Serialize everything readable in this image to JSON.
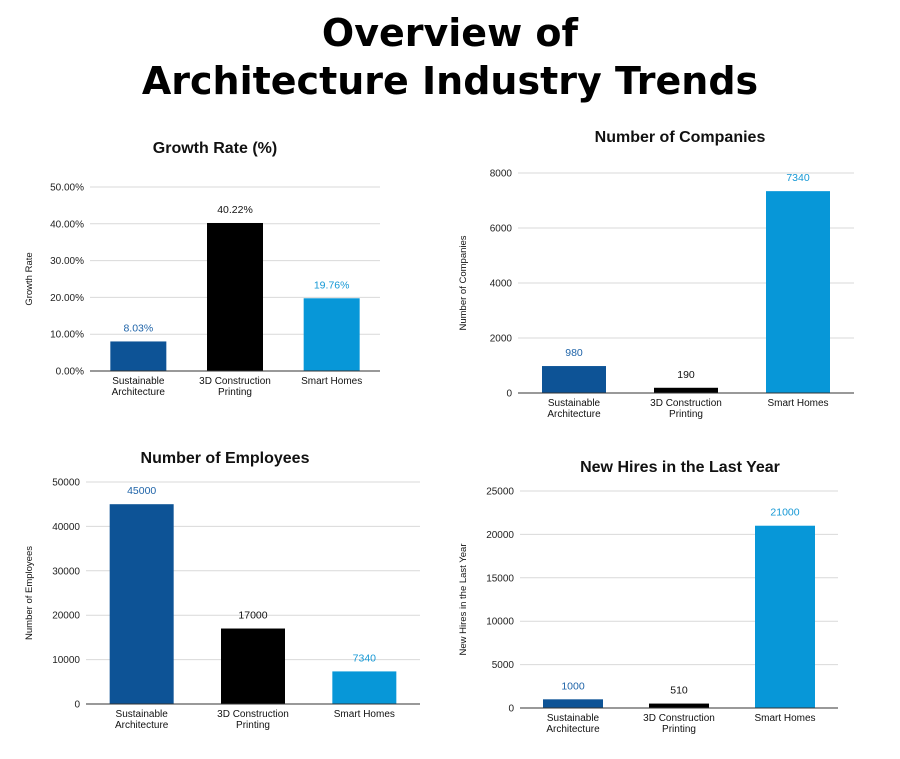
{
  "title_line1": "Overview of",
  "title_line2": "Architecture Industry Trends",
  "chart_data": [
    {
      "id": "growth",
      "type": "bar",
      "title": "Growth Rate (%)",
      "ylabel": "Growth Rate",
      "xlabel": "",
      "categories": [
        [
          "Sustainable",
          "Architecture"
        ],
        [
          "3D Construction",
          "Printing"
        ],
        [
          "Smart Homes"
        ]
      ],
      "values": [
        8.03,
        40.22,
        19.76
      ],
      "value_labels": [
        "8.03%",
        "40.22%",
        "19.76%"
      ],
      "ylim": [
        0,
        50
      ],
      "yticks": [
        0,
        10,
        20,
        30,
        40,
        50
      ],
      "ytick_labels": [
        "0.00%",
        "10.00%",
        "20.00%",
        "30.00%",
        "40.00%",
        "50.00%"
      ],
      "grid": true
    },
    {
      "id": "companies",
      "type": "bar",
      "title": "Number of Companies",
      "ylabel": "Number of Companies",
      "xlabel": "",
      "categories": [
        [
          "Sustainable",
          "Architecture"
        ],
        [
          "3D Construction",
          "Printing"
        ],
        [
          "Smart Homes"
        ]
      ],
      "values": [
        980,
        190,
        7340
      ],
      "value_labels": [
        "980",
        "190",
        "7340"
      ],
      "ylim": [
        0,
        8000
      ],
      "yticks": [
        0,
        2000,
        4000,
        6000,
        8000
      ],
      "ytick_labels": [
        "0",
        "2000",
        "4000",
        "6000",
        "8000"
      ],
      "grid": true
    },
    {
      "id": "employees",
      "type": "bar",
      "title": "Number of Employees",
      "ylabel": "Number of Employees",
      "xlabel": "",
      "categories": [
        [
          "Sustainable",
          "Architecture"
        ],
        [
          "3D Construction",
          "Printing"
        ],
        [
          "Smart Homes"
        ]
      ],
      "values": [
        45000,
        17000,
        7340
      ],
      "value_labels": [
        "45000",
        "17000",
        "7340"
      ],
      "ylim": [
        0,
        50000
      ],
      "yticks": [
        0,
        10000,
        20000,
        30000,
        40000,
        50000
      ],
      "ytick_labels": [
        "0",
        "10000",
        "20000",
        "30000",
        "40000",
        "50000"
      ],
      "grid": true
    },
    {
      "id": "hires",
      "type": "bar",
      "title": "New Hires in the Last Year",
      "ylabel": "New Hires in the Last Year",
      "xlabel": "",
      "categories": [
        [
          "Sustainable",
          "Architecture"
        ],
        [
          "3D Construction",
          "Printing"
        ],
        [
          "Smart Homes"
        ]
      ],
      "values": [
        1000,
        510,
        21000
      ],
      "value_labels": [
        "1000",
        "510",
        "21000"
      ],
      "ylim": [
        0,
        25000
      ],
      "yticks": [
        0,
        5000,
        10000,
        15000,
        20000,
        25000
      ],
      "ytick_labels": [
        "0",
        "5000",
        "10000",
        "15000",
        "20000",
        "25000"
      ],
      "grid": true
    }
  ],
  "colors": {
    "sustainable": "#0d5396",
    "printing": "#000000",
    "smart_homes": "#0797d8",
    "label_sustainable": "#1e63a8",
    "label_printing": "#111111",
    "label_smart_homes": "#1598d5",
    "grid": "#d9d9d9",
    "axis": "#333333"
  }
}
